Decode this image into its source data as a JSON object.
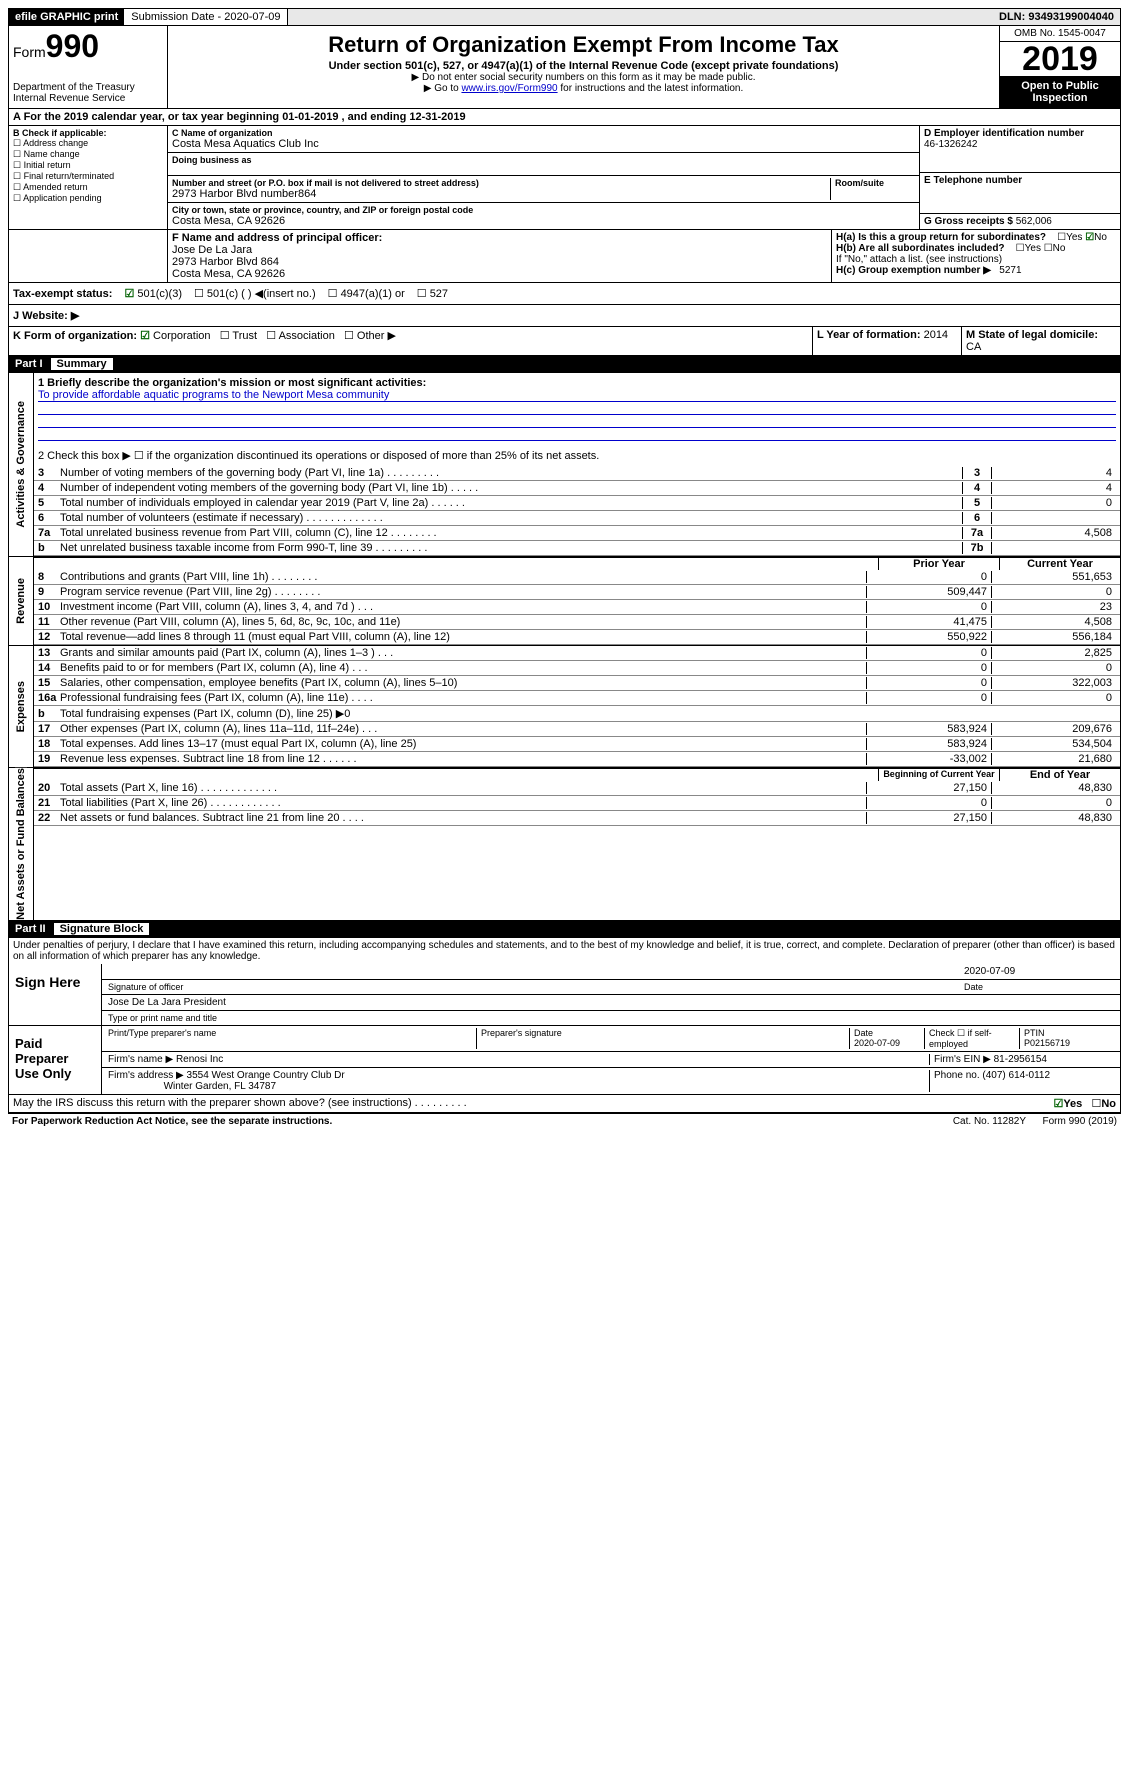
{
  "topbar": {
    "efile": "efile GRAPHIC print",
    "sub_label": "Submission Date - 2020-07-09",
    "dln": "DLN: 93493199004040"
  },
  "header": {
    "form_label": "Form",
    "form_num": "990",
    "dept": "Department of the Treasury\nInternal Revenue Service",
    "title": "Return of Organization Exempt From Income Tax",
    "subtitle": "Under section 501(c), 527, or 4947(a)(1) of the Internal Revenue Code (except private foundations)",
    "note1": "▶ Do not enter social security numbers on this form as it may be made public.",
    "note2_pre": "▶ Go to ",
    "note2_link": "www.irs.gov/Form990",
    "note2_post": " for instructions and the latest information.",
    "omb": "OMB No. 1545-0047",
    "year": "2019",
    "inspect": "Open to Public Inspection"
  },
  "a_line": "A For the 2019 calendar year, or tax year beginning 01-01-2019    , and ending 12-31-2019",
  "b": {
    "label": "B Check if applicable:",
    "items": [
      "Address change",
      "Name change",
      "Initial return",
      "Final return/terminated",
      "Amended return",
      "Application pending"
    ]
  },
  "c": {
    "name_label": "C Name of organization",
    "name": "Costa Mesa Aquatics Club Inc",
    "dba_label": "Doing business as",
    "addr_label": "Number and street (or P.O. box if mail is not delivered to street address)",
    "room_label": "Room/suite",
    "addr": "2973 Harbor Blvd number864",
    "city_label": "City or town, state or province, country, and ZIP or foreign postal code",
    "city": "Costa Mesa, CA  92626"
  },
  "d": {
    "label": "D Employer identification number",
    "val": "46-1326242"
  },
  "e": {
    "label": "E Telephone number"
  },
  "g": {
    "label": "G Gross receipts $",
    "val": "562,006"
  },
  "f": {
    "label": "F Name and address of principal officer:",
    "name": "Jose De La Jara",
    "addr1": "2973 Harbor Blvd 864",
    "addr2": "Costa Mesa, CA  92626"
  },
  "h": {
    "a": "H(a) Is this a group return for subordinates?",
    "a_ans": "No",
    "b": "H(b) Are all subordinates included?",
    "b_note": "If \"No,\" attach a list. (see instructions)",
    "c": "H(c) Group exemption number ▶",
    "c_val": "5271"
  },
  "i": {
    "label": "Tax-exempt status:",
    "v501c3": "501(c)(3)",
    "v501c": "501(c) ( ) ◀(insert no.)",
    "v4947": "4947(a)(1) or",
    "v527": "527"
  },
  "j": {
    "label": "J  Website: ▶"
  },
  "k": {
    "label": "K Form of organization:",
    "corp": "Corporation",
    "trust": "Trust",
    "assoc": "Association",
    "other": "Other ▶"
  },
  "l": {
    "label": "L Year of formation:",
    "val": "2014"
  },
  "m": {
    "label": "M State of legal domicile:",
    "val": "CA"
  },
  "part1": {
    "num": "Part I",
    "title": "Summary"
  },
  "summary": {
    "q1": "1  Briefly describe the organization's mission or most significant activities:",
    "a1": "To provide affordable aquatic programs to the Newport Mesa community",
    "q2": "2  Check this box ▶ ☐  if the organization discontinued its operations or disposed of more than 25% of its net assets.",
    "rows": [
      {
        "n": "3",
        "d": "Number of voting members of the governing body (Part VI, line 1a)  .   .   .   .   .   .   .   .   .",
        "b": "3",
        "v": "4"
      },
      {
        "n": "4",
        "d": "Number of independent voting members of the governing body (Part VI, line 1b)  .   .   .   .   .",
        "b": "4",
        "v": "4"
      },
      {
        "n": "5",
        "d": "Total number of individuals employed in calendar year 2019 (Part V, line 2a)  .   .   .   .   .   .",
        "b": "5",
        "v": "0"
      },
      {
        "n": "6",
        "d": "Total number of volunteers (estimate if necessary)  .   .   .   .   .   .   .   .   .   .   .   .   .",
        "b": "6",
        "v": ""
      },
      {
        "n": "7a",
        "d": "Total unrelated business revenue from Part VIII, column (C), line 12  .   .   .   .   .   .   .   .",
        "b": "7a",
        "v": "4,508"
      },
      {
        "n": "b",
        "d": "Net unrelated business taxable income from Form 990-T, line 39  .   .   .   .   .   .   .   .   .",
        "b": "7b",
        "v": ""
      }
    ],
    "py": "Prior Year",
    "cy": "Current Year",
    "rev": [
      {
        "n": "8",
        "d": "Contributions and grants (Part VIII, line 1h)  .   .   .   .   .   .   .   .",
        "p": "0",
        "c": "551,653"
      },
      {
        "n": "9",
        "d": "Program service revenue (Part VIII, line 2g)  .   .   .   .   .   .   .   .",
        "p": "509,447",
        "c": "0"
      },
      {
        "n": "10",
        "d": "Investment income (Part VIII, column (A), lines 3, 4, and 7d )  .   .   .",
        "p": "0",
        "c": "23"
      },
      {
        "n": "11",
        "d": "Other revenue (Part VIII, column (A), lines 5, 6d, 8c, 9c, 10c, and 11e)",
        "p": "41,475",
        "c": "4,508"
      },
      {
        "n": "12",
        "d": "Total revenue—add lines 8 through 11 (must equal Part VIII, column (A), line 12)",
        "p": "550,922",
        "c": "556,184"
      }
    ],
    "exp": [
      {
        "n": "13",
        "d": "Grants and similar amounts paid (Part IX, column (A), lines 1–3 )  .   .   .",
        "p": "0",
        "c": "2,825"
      },
      {
        "n": "14",
        "d": "Benefits paid to or for members (Part IX, column (A), line 4)  .   .   .",
        "p": "0",
        "c": "0"
      },
      {
        "n": "15",
        "d": "Salaries, other compensation, employee benefits (Part IX, column (A), lines 5–10)",
        "p": "0",
        "c": "322,003"
      },
      {
        "n": "16a",
        "d": "Professional fundraising fees (Part IX, column (A), line 11e)  .   .   .   .",
        "p": "0",
        "c": "0"
      },
      {
        "n": "b",
        "d": "Total fundraising expenses (Part IX, column (D), line 25) ▶0",
        "p": "",
        "c": "",
        "shade": true
      },
      {
        "n": "17",
        "d": "Other expenses (Part IX, column (A), lines 11a–11d, 11f–24e)  .   .   .",
        "p": "583,924",
        "c": "209,676"
      },
      {
        "n": "18",
        "d": "Total expenses. Add lines 13–17 (must equal Part IX, column (A), line 25)",
        "p": "583,924",
        "c": "534,504"
      },
      {
        "n": "19",
        "d": "Revenue less expenses. Subtract line 18 from line 12  .   .   .   .   .   .",
        "p": "-33,002",
        "c": "21,680"
      }
    ],
    "bcy": "Beginning of Current Year",
    "eoy": "End of Year",
    "net": [
      {
        "n": "20",
        "d": "Total assets (Part X, line 16)  .   .   .   .   .   .   .   .   .   .   .   .   .",
        "p": "27,150",
        "c": "48,830"
      },
      {
        "n": "21",
        "d": "Total liabilities (Part X, line 26)  .   .   .   .   .   .   .   .   .   .   .   .",
        "p": "0",
        "c": "0"
      },
      {
        "n": "22",
        "d": "Net assets or fund balances. Subtract line 21 from line 20  .   .   .   .",
        "p": "27,150",
        "c": "48,830"
      }
    ]
  },
  "vlabels": {
    "gov": "Activities & Governance",
    "rev": "Revenue",
    "exp": "Expenses",
    "net": "Net Assets or Fund Balances"
  },
  "part2": {
    "num": "Part II",
    "title": "Signature Block"
  },
  "perjury": "Under penalties of perjury, I declare that I have examined this return, including accompanying schedules and statements, and to the best of my knowledge and belief, it is true, correct, and complete. Declaration of preparer (other than officer) is based on all information of which preparer has any knowledge.",
  "sign": {
    "here": "Sign Here",
    "sig_of": "Signature of officer",
    "date": "2020-07-09",
    "date_l": "Date",
    "name": "Jose De La Jara  President",
    "name_l": "Type or print name and title"
  },
  "paid": {
    "label": "Paid Preparer Use Only",
    "h_prep": "Print/Type preparer's name",
    "h_sig": "Preparer's signature",
    "h_date": "Date",
    "date": "2020-07-09",
    "h_check": "Check ☐ if self-employed",
    "h_ptin": "PTIN",
    "ptin": "P02156719",
    "firm_l": "Firm's name    ▶",
    "firm": "Renosi Inc",
    "ein_l": "Firm's EIN ▶",
    "ein": "81-2956154",
    "addr_l": "Firm's address ▶",
    "addr1": "3554 West Orange Country Club Dr",
    "addr2": "Winter Garden, FL  34787",
    "phone_l": "Phone no.",
    "phone": "(407) 614-0112"
  },
  "discuss": "May the IRS discuss this return with the preparer shown above? (see instructions)   .   .   .   .   .   .   .   .   .",
  "discuss_ans": "Yes",
  "footer": {
    "pra": "For Paperwork Reduction Act Notice, see the separate instructions.",
    "cat": "Cat. No. 11282Y",
    "form": "Form 990 (2019)"
  }
}
